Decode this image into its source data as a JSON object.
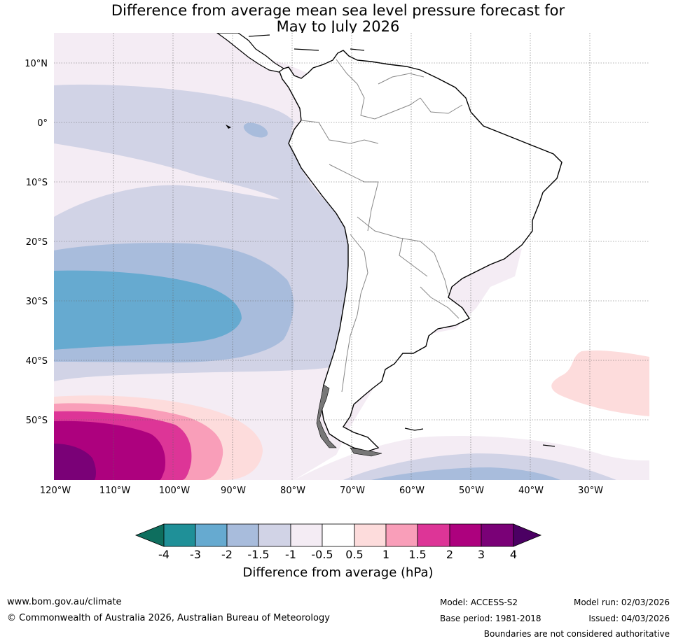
{
  "title": {
    "line1": "Difference from average mean sea level pressure forecast for",
    "line2": "May to July 2026"
  },
  "axes": {
    "lat_labels": [
      "10°N",
      "0°",
      "10°S",
      "20°S",
      "30°S",
      "40°S",
      "50°S"
    ],
    "lon_labels": [
      "120°W",
      "110°W",
      "100°W",
      "90°W",
      "80°W",
      "70°W",
      "60°W",
      "50°W",
      "40°W",
      "30°W"
    ]
  },
  "colorbar": {
    "label": "Difference from average (hPa)",
    "ticks": [
      "-4",
      "-3",
      "-2",
      "-1.5",
      "-1",
      "-0.5",
      "0.5",
      "1",
      "1.5",
      "2",
      "3",
      "4"
    ],
    "colors": [
      "#0e6e5e",
      "#1f9098",
      "#66aad0",
      "#a8bcdc",
      "#d1d3e6",
      "#f4ecf4",
      "#ffffff",
      "#fddcdc",
      "#f99eb9",
      "#dd3597",
      "#ad017e",
      "#7a0177",
      "#4b0063"
    ]
  },
  "footer": {
    "website": "www.bom.gov.au/climate",
    "copyright": "© Commonwealth of Australia 2026, Australian Bureau of Meteorology",
    "model": "Model: ACCESS-S2",
    "base_period": "Base period: 1981-2018",
    "model_run": "Model run: 02/03/2026",
    "issued": "Issued: 04/03/2026",
    "disclaimer": "Boundaries are not considered authoritative"
  }
}
